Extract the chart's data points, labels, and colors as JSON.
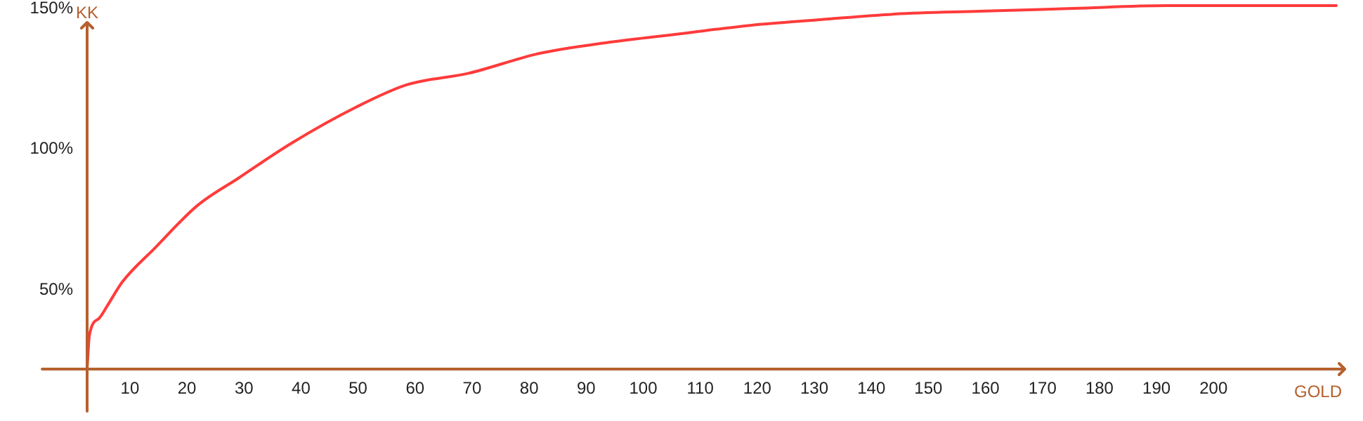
{
  "chart_data": {
    "type": "line",
    "xlabel": "GOLD",
    "ylabel": "KK",
    "x": [
      2.5,
      2.9,
      4.6,
      6.2,
      8.7,
      14.4,
      21.8,
      29.2,
      38.2,
      49.7,
      58.7,
      69.4,
      81.7,
      94,
      106.4,
      118.7,
      131,
      144.1,
      158.9,
      175.3,
      191.7,
      208.2,
      221.7
    ],
    "series": [
      {
        "color": "#ff3b3b",
        "values": [
          22,
          34,
          40,
          45,
          53,
          65,
          80,
          90,
          102,
          115,
          123,
          127,
          134,
          138,
          141,
          144,
          146,
          148,
          149,
          150,
          151,
          151,
          151
        ]
      }
    ],
    "xlim": [
      2.5,
      223
    ],
    "xticks": [
      10,
      20,
      30,
      40,
      50,
      60,
      70,
      80,
      90,
      100,
      110,
      120,
      130,
      140,
      150,
      160,
      170,
      180,
      190,
      200
    ],
    "ylim": [
      22,
      153
    ],
    "yticks": [
      {
        "value": 50,
        "label": "50%"
      },
      {
        "value": 100,
        "label": "100%"
      },
      {
        "value": 150,
        "label": "150%"
      }
    ],
    "grid": false,
    "marker": "none",
    "line_style": "solid",
    "legend": false
  }
}
